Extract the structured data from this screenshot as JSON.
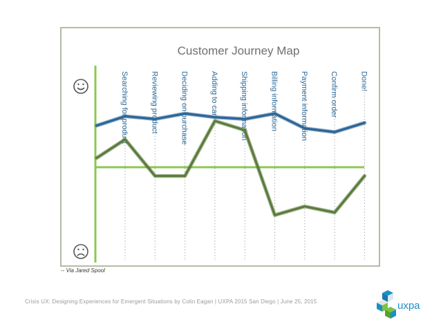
{
  "chart_data": {
    "type": "line",
    "title": "Customer Journey Map",
    "categories": [
      "Searching for product",
      "Reviewing product",
      "Deciding on purchase",
      "Adding to cart",
      "Shipping information",
      "Billing information",
      "Payment information",
      "Confirm order",
      "Done!"
    ],
    "y_axis_ends": {
      "top_icon": "smiley-happy",
      "bottom_icon": "smiley-sad"
    },
    "ylim": [
      -10,
      10
    ],
    "series": [
      {
        "style": "hand-drawn",
        "color": "#2a6496",
        "points": [
          {
            "x": -0.95,
            "y": 4.5
          },
          {
            "x": 0,
            "y": 5.5
          },
          {
            "x": 1,
            "y": 5.2
          },
          {
            "x": 2,
            "y": 5.8
          },
          {
            "x": 3,
            "y": 5.4
          },
          {
            "x": 4,
            "y": 5.2
          },
          {
            "x": 5,
            "y": 5.8
          },
          {
            "x": 6,
            "y": 4.2
          },
          {
            "x": 7,
            "y": 3.8
          },
          {
            "x": 8,
            "y": 4.8
          }
        ]
      },
      {
        "style": "hand-drawn",
        "color": "#5a7a3a",
        "points": [
          {
            "x": -0.95,
            "y": 1.0
          },
          {
            "x": 0,
            "y": 3.0
          },
          {
            "x": 1,
            "y": -1.0
          },
          {
            "x": 2,
            "y": -1.0
          },
          {
            "x": 3,
            "y": 5.0
          },
          {
            "x": 4,
            "y": 4.0
          },
          {
            "x": 5,
            "y": -5.5
          },
          {
            "x": 6,
            "y": -4.5
          },
          {
            "x": 7,
            "y": -5.2
          },
          {
            "x": 8,
            "y": -1.0
          }
        ]
      }
    ],
    "baseline": 0,
    "grid": "dotted vertical lines at each step"
  },
  "credit": "-- Via Jared Spool",
  "footer": "Crisis UX: Designing Experiences for Emergent Situations by Colin Eagan | UXPA 2015 San Diego | June 25, 2015",
  "logo": {
    "text": "uxpa",
    "colors": [
      "#1b8fc6",
      "#7cc242",
      "#f0f0f0"
    ]
  },
  "colors": {
    "frame": "#a9b59a",
    "axis_green": "#8cc752",
    "title": "#6f6f6f",
    "labels": "#2f6b99"
  }
}
